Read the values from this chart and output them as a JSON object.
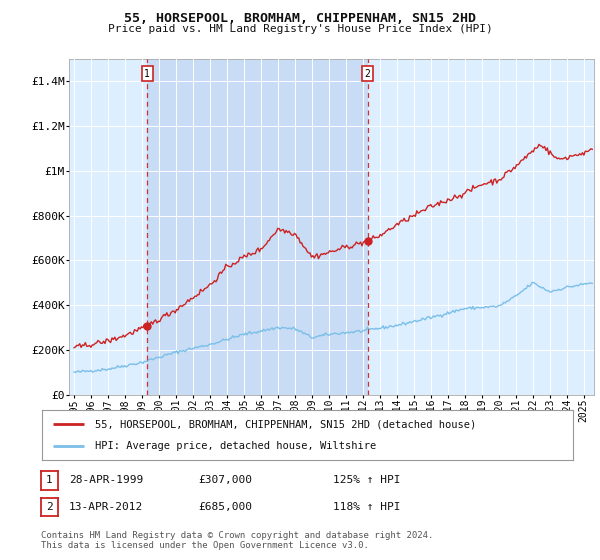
{
  "title1": "55, HORSEPOOL, BROMHAM, CHIPPENHAM, SN15 2HD",
  "title2": "Price paid vs. HM Land Registry's House Price Index (HPI)",
  "legend_line1": "55, HORSEPOOL, BROMHAM, CHIPPENHAM, SN15 2HD (detached house)",
  "legend_line2": "HPI: Average price, detached house, Wiltshire",
  "footnote": "Contains HM Land Registry data © Crown copyright and database right 2024.\nThis data is licensed under the Open Government Licence v3.0.",
  "purchase1": {
    "label": "1",
    "date_x": 1999.3,
    "price": 307000,
    "date_str": "28-APR-1999",
    "price_str": "£307,000",
    "hpi_str": "125% ↑ HPI"
  },
  "purchase2": {
    "label": "2",
    "date_x": 2012.28,
    "price": 685000,
    "date_str": "13-APR-2012",
    "price_str": "£685,000",
    "hpi_str": "118% ↑ HPI"
  },
  "ylim": [
    0,
    1500000
  ],
  "xlim_start": 1994.7,
  "xlim_end": 2025.6,
  "hpi_color": "#7bbfe8",
  "house_color": "#cc2222",
  "background_color": "#ddeeff",
  "background_color2": "#c8ddf5",
  "grid_color": "#ffffff",
  "yticks": [
    0,
    200000,
    400000,
    600000,
    800000,
    1000000,
    1200000,
    1400000
  ],
  "ytick_labels": [
    "£0",
    "£200K",
    "£400K",
    "£600K",
    "£800K",
    "£1M",
    "£1.2M",
    "£1.4M"
  ]
}
